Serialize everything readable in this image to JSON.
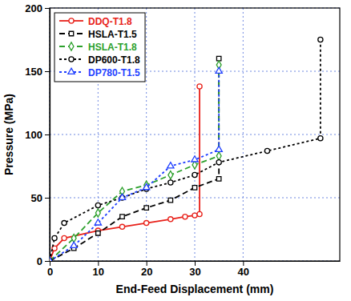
{
  "chart_data": {
    "type": "line",
    "x_label": "End-Feed Displacement (mm)",
    "y_label": "Pressure (MPa)",
    "xlim": [
      0,
      60
    ],
    "xticks": [
      0,
      10,
      20,
      30,
      40
    ],
    "ylim": [
      0,
      200
    ],
    "yticks": [
      0,
      50,
      100,
      150,
      200
    ],
    "grid": true,
    "legend": "upper left",
    "series": [
      {
        "name": "DDQ-T1.8",
        "color": "#e8211a",
        "marker": "circle",
        "line_style": "solid",
        "x": [
          0,
          1,
          3,
          10,
          15,
          20,
          25,
          28,
          30,
          31,
          31
        ],
        "values": [
          0,
          10,
          18,
          24,
          27,
          30,
          33,
          35,
          36,
          37,
          138
        ]
      },
      {
        "name": "HSLA-T1.5",
        "color": "#000000",
        "marker": "square",
        "line_style": "dashed",
        "x": [
          0,
          5,
          10,
          15,
          20,
          25,
          30,
          35,
          35
        ],
        "values": [
          0,
          10,
          22,
          35,
          42,
          48,
          58,
          65,
          160
        ]
      },
      {
        "name": "HSLA-T1.8",
        "color": "#2ca02c",
        "marker": "diamond",
        "line_style": "dashed",
        "x": [
          0,
          5,
          10,
          15,
          20,
          25,
          30,
          35,
          35
        ],
        "values": [
          0,
          18,
          38,
          55,
          60,
          68,
          76,
          83,
          155
        ]
      },
      {
        "name": "DP600-T1.8",
        "color": "#000000",
        "marker": "circle",
        "line_style": "dotted",
        "x": [
          0,
          1,
          3,
          10,
          15,
          20,
          25,
          30,
          35,
          45,
          56,
          56
        ],
        "values": [
          0,
          18,
          30,
          44,
          50,
          57,
          62,
          68,
          78,
          87,
          97,
          175
        ]
      },
      {
        "name": "DP780-T1.5",
        "color": "#1f3fff",
        "marker": "triangle",
        "line_style": "dotted",
        "x": [
          0,
          5,
          10,
          15,
          20,
          25,
          30,
          35,
          35
        ],
        "values": [
          0,
          12,
          30,
          50,
          58,
          75,
          80,
          88,
          150
        ]
      }
    ]
  }
}
